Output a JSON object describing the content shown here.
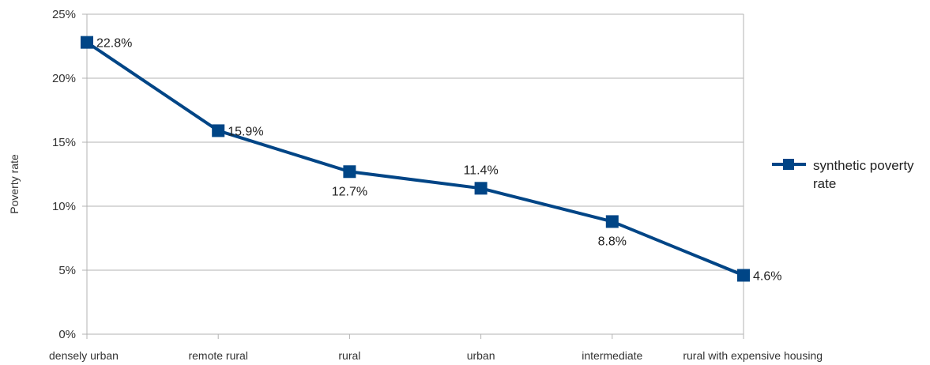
{
  "chart_data": {
    "type": "line",
    "categories": [
      "densely urban",
      "remote rural",
      "rural",
      "urban",
      "intermediate",
      "rural with expensive housing"
    ],
    "series": [
      {
        "name": "synthetic poverty rate",
        "values": [
          22.8,
          15.9,
          12.7,
          11.4,
          8.8,
          4.6
        ],
        "data_labels": [
          "22.8%",
          "15.9%",
          "12.7%",
          "11.4%",
          "8.8%",
          "4.6%"
        ],
        "color": "#004586"
      }
    ],
    "ylabel": "Poverty rate",
    "ylim": [
      0,
      25
    ],
    "yticks": [
      0,
      5,
      10,
      15,
      20,
      25
    ],
    "ytick_labels": [
      "0%",
      "5%",
      "10%",
      "15%",
      "20%",
      "25%"
    ],
    "grid": true,
    "legend": {
      "position": "right",
      "label_lines": [
        "synthetic poverty",
        "rate"
      ]
    }
  }
}
